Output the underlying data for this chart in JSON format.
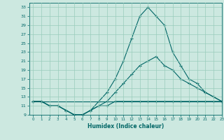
{
  "xlabel": "Humidex (Indice chaleur)",
  "bg_color": "#cce8e0",
  "line_color": "#006666",
  "grid_color": "#99ccbb",
  "xlim": [
    -0.5,
    23
  ],
  "ylim": [
    9,
    34
  ],
  "yticks": [
    9,
    11,
    13,
    15,
    17,
    19,
    21,
    23,
    25,
    27,
    29,
    31,
    33
  ],
  "xticks": [
    0,
    1,
    2,
    3,
    4,
    5,
    6,
    7,
    8,
    9,
    10,
    11,
    12,
    13,
    14,
    15,
    16,
    17,
    18,
    19,
    20,
    21,
    22,
    23
  ],
  "curve1_x": [
    0,
    1,
    2,
    3,
    4,
    5,
    6,
    7,
    8,
    9,
    10,
    11,
    12,
    13,
    14,
    15,
    16,
    17,
    18,
    19,
    20,
    21,
    22,
    23
  ],
  "curve1_y": [
    12,
    12,
    11,
    11,
    10,
    9,
    9,
    10,
    12,
    14,
    17,
    21,
    26,
    31,
    33,
    31,
    29,
    23,
    20,
    17,
    16,
    14,
    13,
    12
  ],
  "curve2_x": [
    0,
    1,
    2,
    3,
    4,
    5,
    6,
    7,
    8,
    9,
    10,
    11,
    12,
    13,
    14,
    15,
    16,
    17,
    18,
    19,
    20,
    21,
    22,
    23
  ],
  "curve2_y": [
    12,
    12,
    11,
    11,
    10,
    9,
    9,
    10,
    11,
    12,
    14,
    16,
    18,
    20,
    21,
    22,
    20,
    19,
    17,
    16,
    15,
    14,
    13,
    12
  ],
  "curve3_x": [
    0,
    23
  ],
  "curve3_y": [
    12,
    12
  ],
  "curve4_x": [
    0,
    1,
    2,
    3,
    4,
    5,
    6,
    7,
    8,
    9,
    10,
    11,
    12,
    13,
    14,
    15,
    16,
    17,
    18,
    19,
    20,
    21,
    22,
    23
  ],
  "curve4_y": [
    12,
    12,
    11,
    11,
    10,
    9,
    9,
    10,
    11,
    11,
    12,
    12,
    12,
    12,
    12,
    12,
    12,
    12,
    12,
    12,
    12,
    12,
    12,
    12
  ]
}
